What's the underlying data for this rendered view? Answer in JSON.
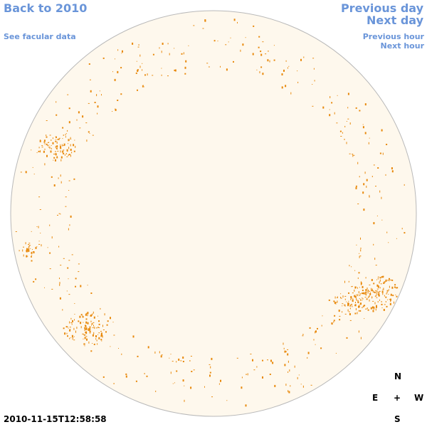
{
  "nav": {
    "back": "Back to 2010",
    "facular": "See facular data",
    "prev_day": "Previous day",
    "next_day": "Next day",
    "prev_hour": "Previous hour",
    "next_hour": "Next hour"
  },
  "compass": {
    "north": "N",
    "east": "E",
    "center": "+",
    "west": "W",
    "south": "S"
  },
  "timestamp": "2010-11-15T12:58:58",
  "colors": {
    "link": "#6a95d9",
    "disk_fill": "#fef8ed",
    "disk_edge": "#b9b9b9",
    "facula": "#e8890c"
  }
}
